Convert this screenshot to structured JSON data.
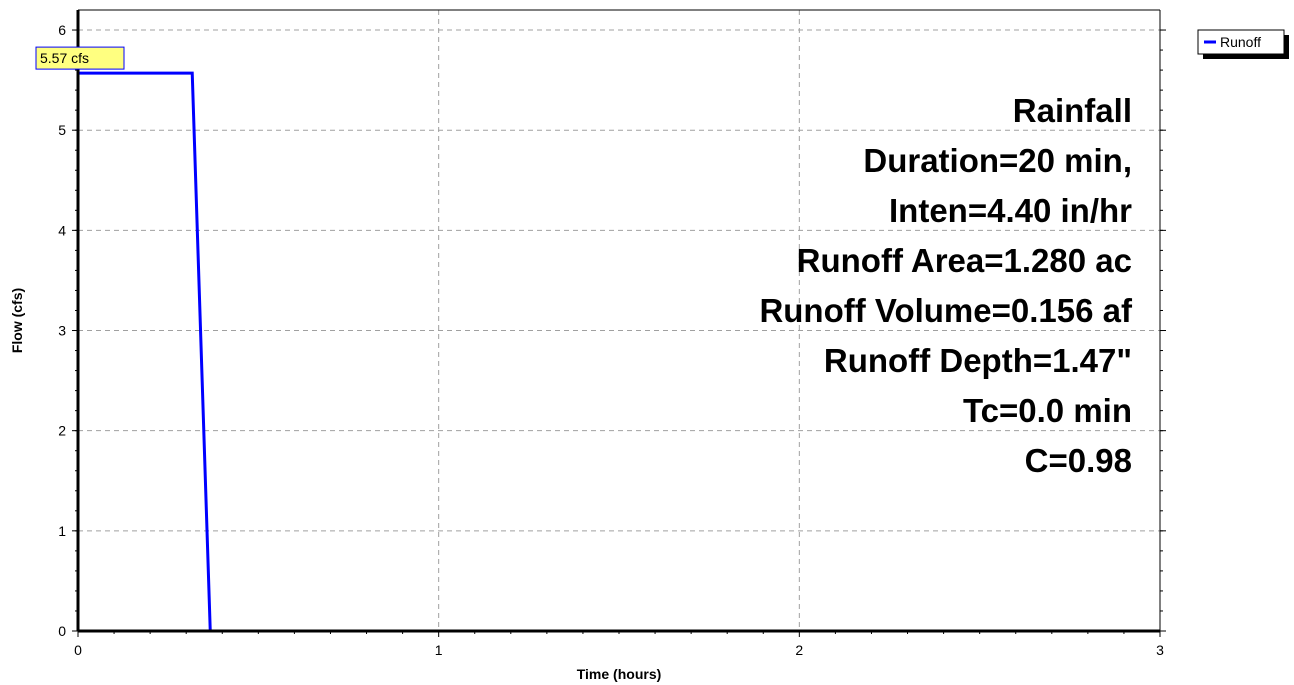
{
  "chart_data": {
    "type": "line",
    "xlabel": "Time  (hours)",
    "ylabel": "Flow  (cfs)",
    "xlim": [
      0,
      3
    ],
    "ylim": [
      0,
      6.2
    ],
    "x_ticks": [
      "0",
      "1",
      "2",
      "3"
    ],
    "y_ticks": [
      "0",
      "1",
      "2",
      "3",
      "4",
      "5",
      "6"
    ],
    "grid": true,
    "legend_placement": "top-right",
    "series": [
      {
        "name": "Runoff",
        "color": "#0000ff",
        "x": [
          0,
          0.3167,
          0.3667,
          3.0
        ],
        "y": [
          5.57,
          5.57,
          0,
          0
        ]
      }
    ],
    "peak_label": {
      "text": "5.57 cfs",
      "x": 0,
      "y": 5.57,
      "background": "#ffff80",
      "border": "#0000ff"
    },
    "annotations": [
      "Rainfall",
      "Duration=20 min,",
      "Inten=4.40 in/hr",
      "Runoff Area=1.280 ac",
      "Runoff Volume=0.156 af",
      "Runoff Depth=1.47\"",
      "Tc=0.0 min",
      "C=0.98"
    ]
  }
}
